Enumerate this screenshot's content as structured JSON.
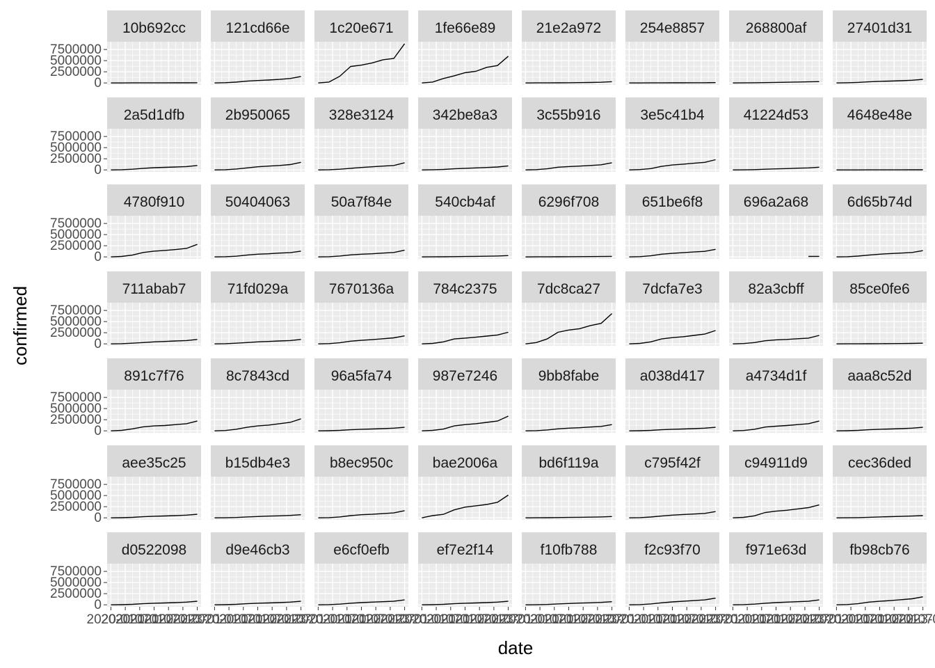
{
  "chart_data": {
    "type": "line",
    "xlabel": "date",
    "ylabel": "confirmed",
    "ylim": [
      0,
      8800000
    ],
    "y_ticks": [
      0,
      2500000,
      5000000,
      7500000
    ],
    "y_tick_labels": [
      "0",
      "2500000",
      "5000000",
      "7500000"
    ],
    "x_tick_labels": [
      "2020-01",
      "2020-07",
      "2021-01",
      "2021-07",
      "2022-01",
      "2022-07",
      "2023-01"
    ],
    "grid": true,
    "legend": "none",
    "facets": [
      {
        "name": "10b692cc",
        "values": [
          0,
          2000,
          6000,
          10000,
          15000,
          20000,
          25000,
          30000,
          40000
        ]
      },
      {
        "name": "121cd66e",
        "values": [
          0,
          60000,
          180000,
          400000,
          550000,
          650000,
          800000,
          1000000,
          1450000
        ]
      },
      {
        "name": "1c20e671",
        "values": [
          0,
          200000,
          1500000,
          3700000,
          4000000,
          4500000,
          5200000,
          5500000,
          8800000
        ]
      },
      {
        "name": "1fe66e89",
        "values": [
          0,
          200000,
          1000000,
          1600000,
          2300000,
          2600000,
          3500000,
          3900000,
          6000000
        ]
      },
      {
        "name": "21e2a972",
        "values": [
          0,
          5000,
          15000,
          30000,
          50000,
          80000,
          110000,
          150000,
          280000
        ]
      },
      {
        "name": "254e8857",
        "values": [
          0,
          3000,
          8000,
          15000,
          22000,
          30000,
          40000,
          50000,
          70000
        ]
      },
      {
        "name": "268800af",
        "values": [
          0,
          15000,
          40000,
          80000,
          120000,
          160000,
          200000,
          250000,
          300000
        ]
      },
      {
        "name": "27401d31",
        "values": [
          0,
          40000,
          120000,
          250000,
          350000,
          420000,
          500000,
          600000,
          800000
        ]
      },
      {
        "name": "2a5d1dfb",
        "values": [
          0,
          50000,
          150000,
          350000,
          500000,
          580000,
          650000,
          750000,
          1000000
        ]
      },
      {
        "name": "2b950065",
        "values": [
          0,
          50000,
          200000,
          450000,
          700000,
          850000,
          1000000,
          1200000,
          1700000
        ]
      },
      {
        "name": "328e3124",
        "values": [
          0,
          50000,
          150000,
          350000,
          550000,
          700000,
          850000,
          1000000,
          1600000
        ]
      },
      {
        "name": "342be8a3",
        "values": [
          0,
          40000,
          100000,
          250000,
          350000,
          450000,
          550000,
          650000,
          900000
        ]
      },
      {
        "name": "3c55b916",
        "values": [
          0,
          60000,
          250000,
          600000,
          750000,
          850000,
          1000000,
          1150000,
          1600000
        ]
      },
      {
        "name": "3e5c41b4",
        "values": [
          0,
          80000,
          300000,
          800000,
          1100000,
          1300000,
          1500000,
          1700000,
          2300000
        ]
      },
      {
        "name": "41224d53",
        "values": [
          0,
          20000,
          60000,
          150000,
          230000,
          300000,
          380000,
          450000,
          600000
        ]
      },
      {
        "name": "4648e48e",
        "values": [
          0,
          1000,
          3000,
          6000,
          10000,
          15000,
          20000,
          25000,
          35000
        ]
      },
      {
        "name": "4780f910",
        "values": [
          0,
          100000,
          400000,
          1000000,
          1300000,
          1450000,
          1650000,
          1900000,
          2800000
        ]
      },
      {
        "name": "50404063",
        "values": [
          0,
          40000,
          150000,
          400000,
          600000,
          700000,
          850000,
          950000,
          1300000
        ]
      },
      {
        "name": "50a7f84e",
        "values": [
          0,
          50000,
          200000,
          450000,
          600000,
          700000,
          850000,
          1000000,
          1500000
        ]
      },
      {
        "name": "540cb4af",
        "values": [
          0,
          10000,
          30000,
          60000,
          90000,
          120000,
          160000,
          200000,
          300000
        ]
      },
      {
        "name": "6296f708",
        "values": [
          0,
          5000,
          15000,
          30000,
          45000,
          60000,
          75000,
          90000,
          120000
        ]
      },
      {
        "name": "651be6f8",
        "values": [
          0,
          60000,
          250000,
          600000,
          800000,
          950000,
          1100000,
          1250000,
          1700000
        ]
      },
      {
        "name": "696a2a68",
        "values": [
          null,
          null,
          null,
          null,
          null,
          null,
          null,
          100000,
          120000
        ]
      },
      {
        "name": "6d65b74d",
        "values": [
          0,
          50000,
          180000,
          400000,
          600000,
          750000,
          850000,
          1000000,
          1400000
        ]
      },
      {
        "name": "711abab7",
        "values": [
          0,
          40000,
          150000,
          300000,
          450000,
          550000,
          650000,
          750000,
          1000000
        ]
      },
      {
        "name": "71fd029a",
        "values": [
          0,
          40000,
          150000,
          300000,
          450000,
          550000,
          650000,
          750000,
          1000000
        ]
      },
      {
        "name": "7670136a",
        "values": [
          0,
          60000,
          250000,
          600000,
          800000,
          950000,
          1150000,
          1350000,
          1800000
        ]
      },
      {
        "name": "784c2375",
        "values": [
          0,
          100000,
          450000,
          1100000,
          1300000,
          1500000,
          1750000,
          2000000,
          2600000
        ]
      },
      {
        "name": "7dc8ca27",
        "values": [
          0,
          300000,
          1100000,
          2600000,
          3100000,
          3400000,
          4100000,
          4600000,
          6800000
        ]
      },
      {
        "name": "7dcfa7e3",
        "values": [
          0,
          100000,
          450000,
          1100000,
          1400000,
          1600000,
          1900000,
          2200000,
          3000000
        ]
      },
      {
        "name": "82a3cbff",
        "values": [
          0,
          80000,
          300000,
          700000,
          900000,
          1000000,
          1150000,
          1300000,
          1900000
        ]
      },
      {
        "name": "85ce0fe6",
        "values": [
          0,
          5000,
          15000,
          30000,
          45000,
          60000,
          80000,
          100000,
          150000
        ]
      },
      {
        "name": "891c7f76",
        "values": [
          0,
          100000,
          450000,
          900000,
          1100000,
          1200000,
          1400000,
          1600000,
          2200000
        ]
      },
      {
        "name": "8c7843cd",
        "values": [
          0,
          80000,
          350000,
          800000,
          1100000,
          1300000,
          1600000,
          1900000,
          2700000
        ]
      },
      {
        "name": "96a5fa74",
        "values": [
          0,
          30000,
          100000,
          250000,
          350000,
          420000,
          500000,
          600000,
          800000
        ]
      },
      {
        "name": "987e7246",
        "values": [
          0,
          100000,
          400000,
          1100000,
          1400000,
          1600000,
          1900000,
          2200000,
          3300000
        ]
      },
      {
        "name": "9bb8fabe",
        "values": [
          0,
          50000,
          200000,
          450000,
          600000,
          700000,
          850000,
          1000000,
          1400000
        ]
      },
      {
        "name": "a038d417",
        "values": [
          0,
          30000,
          100000,
          250000,
          350000,
          420000,
          500000,
          600000,
          800000
        ]
      },
      {
        "name": "a4734d1f",
        "values": [
          0,
          80000,
          350000,
          850000,
          1050000,
          1200000,
          1400000,
          1600000,
          2200000
        ]
      },
      {
        "name": "aaa8c52d",
        "values": [
          0,
          30000,
          100000,
          250000,
          350000,
          420000,
          500000,
          600000,
          800000
        ]
      },
      {
        "name": "aee35c25",
        "values": [
          0,
          30000,
          100000,
          250000,
          350000,
          420000,
          500000,
          600000,
          800000
        ]
      },
      {
        "name": "b15db4e3",
        "values": [
          0,
          20000,
          80000,
          200000,
          300000,
          380000,
          450000,
          550000,
          700000
        ]
      },
      {
        "name": "b8ec950c",
        "values": [
          0,
          50000,
          200000,
          500000,
          700000,
          800000,
          950000,
          1100000,
          1600000
        ]
      },
      {
        "name": "bae2006a",
        "values": [
          0,
          500000,
          800000,
          1800000,
          2400000,
          2700000,
          3000000,
          3500000,
          5100000
        ]
      },
      {
        "name": "bd6f119a",
        "values": [
          0,
          10000,
          30000,
          60000,
          90000,
          120000,
          160000,
          200000,
          300000
        ]
      },
      {
        "name": "c795f42f",
        "values": [
          0,
          50000,
          180000,
          400000,
          600000,
          750000,
          850000,
          1000000,
          1400000
        ]
      },
      {
        "name": "c94911d9",
        "values": [
          0,
          100000,
          450000,
          1200000,
          1500000,
          1700000,
          2000000,
          2300000,
          2900000
        ]
      },
      {
        "name": "cec36ded",
        "values": [
          0,
          15000,
          50000,
          120000,
          200000,
          260000,
          320000,
          400000,
          500000
        ]
      },
      {
        "name": "d0522098",
        "values": [
          0,
          30000,
          100000,
          250000,
          350000,
          420000,
          500000,
          600000,
          800000
        ]
      },
      {
        "name": "d9e46cb3",
        "values": [
          0,
          30000,
          100000,
          250000,
          350000,
          420000,
          500000,
          600000,
          800000
        ]
      },
      {
        "name": "e6cf0efb",
        "values": [
          0,
          40000,
          150000,
          350000,
          500000,
          600000,
          700000,
          800000,
          1100000
        ]
      },
      {
        "name": "ef7e2f14",
        "values": [
          0,
          30000,
          100000,
          250000,
          350000,
          420000,
          500000,
          600000,
          800000
        ]
      },
      {
        "name": "f10fb788",
        "values": [
          0,
          20000,
          80000,
          200000,
          300000,
          380000,
          450000,
          550000,
          700000
        ]
      },
      {
        "name": "f2c93f70",
        "values": [
          0,
          50000,
          200000,
          450000,
          650000,
          800000,
          950000,
          1100000,
          1500000
        ]
      },
      {
        "name": "f971e63d",
        "values": [
          0,
          40000,
          150000,
          350000,
          500000,
          600000,
          700000,
          800000,
          1100000
        ]
      },
      {
        "name": "fb98cb76",
        "values": [
          0,
          60000,
          250000,
          600000,
          800000,
          950000,
          1150000,
          1350000,
          1800000
        ]
      }
    ]
  }
}
